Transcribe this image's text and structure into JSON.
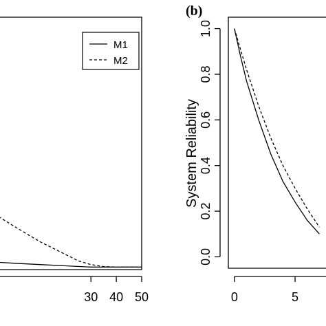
{
  "chart_data": [
    {
      "type": "line",
      "panel_label": "",
      "title": "",
      "xlabel": "",
      "ylabel": "",
      "xlim": [
        -8,
        50
      ],
      "x_ticks": [
        30,
        40,
        50
      ],
      "grid": false,
      "legend": {
        "position": "top-right",
        "entries": [
          "M1",
          "M2"
        ]
      },
      "series": [
        {
          "name": "M1",
          "linestyle": "solid",
          "x": [
            -8,
            0,
            10,
            20,
            30,
            40,
            50
          ],
          "y": [
            0.03,
            0.025,
            0.02,
            0.015,
            0.01,
            0.01,
            0.01
          ]
        },
        {
          "name": "M2",
          "linestyle": "dashed",
          "x": [
            -8,
            0,
            10,
            20,
            25,
            30,
            35,
            40,
            50
          ],
          "y": [
            0.22,
            0.17,
            0.11,
            0.06,
            0.035,
            0.02,
            0.012,
            0.01,
            0.01
          ]
        }
      ],
      "ylim": [
        0,
        1
      ]
    },
    {
      "type": "line",
      "panel_label": "(b)",
      "title": "",
      "xlabel": "",
      "ylabel": "System Reliability",
      "xlim": [
        -0.5,
        8
      ],
      "ylim": [
        -0.05,
        1.05
      ],
      "x_ticks": [
        0,
        5
      ],
      "y_ticks": [
        "0.0",
        "0.2",
        "0.4",
        "0.6",
        "0.8",
        "1.0"
      ],
      "grid": false,
      "series": [
        {
          "name": "",
          "linestyle": "solid",
          "x": [
            0,
            0.5,
            1,
            2,
            3,
            4,
            5,
            6,
            7
          ],
          "y": [
            1.0,
            0.88,
            0.77,
            0.6,
            0.45,
            0.33,
            0.24,
            0.16,
            0.1
          ]
        },
        {
          "name": "",
          "linestyle": "dashed",
          "x": [
            0,
            0.5,
            1,
            2,
            3,
            4,
            5,
            6,
            7
          ],
          "y": [
            1.0,
            0.91,
            0.82,
            0.66,
            0.52,
            0.4,
            0.3,
            0.21,
            0.13
          ]
        }
      ]
    }
  ]
}
